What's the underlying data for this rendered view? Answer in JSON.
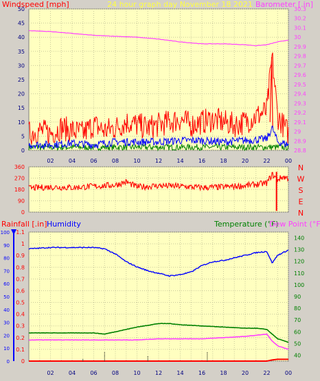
{
  "header": {
    "left_title": "Windspeed [mph]",
    "center_title": "24 hour graph day   November 18 2021",
    "right_title": "Barometer [.in]"
  },
  "colors": {
    "background": "#d4d0c8",
    "plot_bg": "#ffffc0",
    "grid": "#c8c89a",
    "wind": "#ff0000",
    "gust_avg": "#0000ff",
    "green": "#008000",
    "barometer": "#ff40ff",
    "humidity": "#0000ff",
    "temperature": "#008000",
    "dewpoint": "#ff40ff",
    "rain": "#ff0000",
    "title_yellow": "#ffff40"
  },
  "chart_data": [
    {
      "type": "line",
      "panel": "wind_barometer",
      "x_ticks": [
        "02",
        "04",
        "06",
        "08",
        "10",
        "12",
        "14",
        "16",
        "18",
        "20",
        "22",
        "00"
      ],
      "y_left_ticks": [
        "0",
        "5",
        "10",
        "15",
        "20",
        "25",
        "30",
        "35",
        "40",
        "45",
        "50"
      ],
      "ylim_left": [
        0,
        50
      ],
      "y_right_ticks": [
        "28.8",
        "28.9",
        "29",
        "29.1",
        "29.2",
        "29.3",
        "29.4",
        "29.5",
        "29.6",
        "29.7",
        "29.8",
        "29.9",
        "30",
        "30.1",
        "30.2",
        "30.3"
      ],
      "ylim_right": [
        28.8,
        30.3
      ],
      "series": [
        {
          "name": "Windspeed [mph]",
          "axis": "left",
          "x": [
            0,
            1,
            2,
            3,
            4,
            5,
            6,
            7,
            8,
            9,
            10,
            11,
            12,
            13,
            14,
            15,
            16,
            17,
            18,
            19,
            20,
            21,
            22,
            22.5,
            23,
            23.5,
            24
          ],
          "y": [
            6,
            7,
            6,
            8,
            7,
            6,
            9,
            7,
            8,
            10,
            9,
            8,
            9,
            10,
            11,
            9,
            10,
            11,
            10,
            9,
            10,
            12,
            14,
            33,
            12,
            9,
            6
          ]
        },
        {
          "name": "",
          "axis": "left",
          "x": [
            0,
            2,
            4,
            6,
            8,
            10,
            12,
            14,
            16,
            18,
            20,
            22,
            22.5,
            23,
            24
          ],
          "y": [
            2,
            2,
            2.5,
            2,
            3,
            3,
            3,
            3.5,
            3.5,
            3,
            3.5,
            4,
            8,
            3,
            2
          ]
        },
        {
          "name": "Barometer [.in]",
          "axis": "right",
          "x": [
            0,
            2,
            4,
            6,
            8,
            10,
            12,
            14,
            16,
            18,
            20,
            21,
            22,
            23,
            24
          ],
          "y": [
            30.07,
            30.06,
            30.04,
            30.02,
            30.01,
            30.0,
            29.98,
            29.95,
            29.93,
            29.93,
            29.92,
            29.91,
            29.92,
            29.95,
            29.97
          ]
        }
      ]
    },
    {
      "type": "scatter",
      "panel": "wind_direction",
      "y_ticks": [
        "360",
        "270",
        "180",
        "90",
        "0"
      ],
      "ylim": [
        0,
        360
      ],
      "compass_labels": [
        "N",
        "W",
        "S",
        "E",
        "N"
      ],
      "series": [
        {
          "name": "",
          "x": [
            0,
            2,
            4,
            6,
            8,
            9,
            10,
            12,
            14,
            16,
            18,
            20,
            22,
            22.5,
            23,
            23.5,
            24
          ],
          "y": [
            190,
            200,
            195,
            205,
            215,
            240,
            200,
            210,
            205,
            195,
            200,
            210,
            230,
            300,
            260,
            280,
            270
          ]
        }
      ]
    },
    {
      "type": "line",
      "panel": "rain_humidity_temperature",
      "left_labels": {
        "rain": "Rainfall [.in]",
        "humidity": "Humidity"
      },
      "right_labels": {
        "temperature": "Temperature (°F)",
        "dewpoint": "Dew Point (°F)"
      },
      "x_ticks": [
        "02",
        "04",
        "06",
        "08",
        "10",
        "12",
        "14",
        "16",
        "18",
        "20",
        "22",
        "00"
      ],
      "y_humidity_ticks": [
        "0",
        "10",
        "20",
        "30",
        "40",
        "50",
        "60",
        "70",
        "80",
        "90",
        "100"
      ],
      "ylim_humidity": [
        0,
        100
      ],
      "y_rain_ticks": [
        "0",
        "0.1",
        "0.2",
        "0.3",
        "0.4",
        "0.5",
        "0.6",
        "0.7",
        "0.8",
        "0.9",
        "1",
        "1.1"
      ],
      "ylim_rain": [
        0,
        1.1
      ],
      "y_temp_ticks": [
        "40",
        "50",
        "60",
        "70",
        "80",
        "90",
        "100",
        "110",
        "120",
        "130",
        "140"
      ],
      "ylim_temp": [
        35,
        145
      ],
      "series": [
        {
          "name": "Humidity",
          "axis": "humidity",
          "x": [
            0,
            2,
            4,
            6,
            7,
            8,
            9,
            10,
            11,
            12,
            13,
            14,
            15,
            16,
            17,
            18,
            19,
            20,
            21,
            22,
            22.5,
            23,
            24
          ],
          "y": [
            87,
            88,
            88,
            88,
            87,
            83,
            77,
            73,
            70,
            68,
            66,
            67,
            69,
            74,
            77,
            78,
            80,
            82,
            84,
            85,
            76,
            82,
            86
          ]
        },
        {
          "name": "Temperature (°F)",
          "axis": "temp",
          "x": [
            0,
            2,
            4,
            6,
            7,
            8,
            10,
            12,
            13,
            14,
            16,
            18,
            20,
            21,
            22,
            22.5,
            23,
            24
          ],
          "y": [
            59,
            59,
            59,
            59,
            58,
            60,
            64,
            67,
            67,
            66,
            65,
            64,
            63,
            63,
            62,
            58,
            54,
            51
          ]
        },
        {
          "name": "Dew Point (°F)",
          "axis": "temp",
          "x": [
            0,
            2,
            4,
            6,
            8,
            10,
            12,
            14,
            16,
            18,
            20,
            21,
            22,
            22.5,
            23,
            24
          ],
          "y": [
            53,
            53,
            53,
            53,
            53,
            53,
            54,
            54,
            54,
            55,
            56,
            57,
            58,
            52,
            48,
            45
          ]
        },
        {
          "name": "Rainfall [.in]",
          "axis": "rain",
          "x": [
            0,
            22,
            22.5,
            23,
            24
          ],
          "y": [
            0,
            0,
            0.01,
            0.015,
            0.015
          ]
        }
      ]
    }
  ]
}
